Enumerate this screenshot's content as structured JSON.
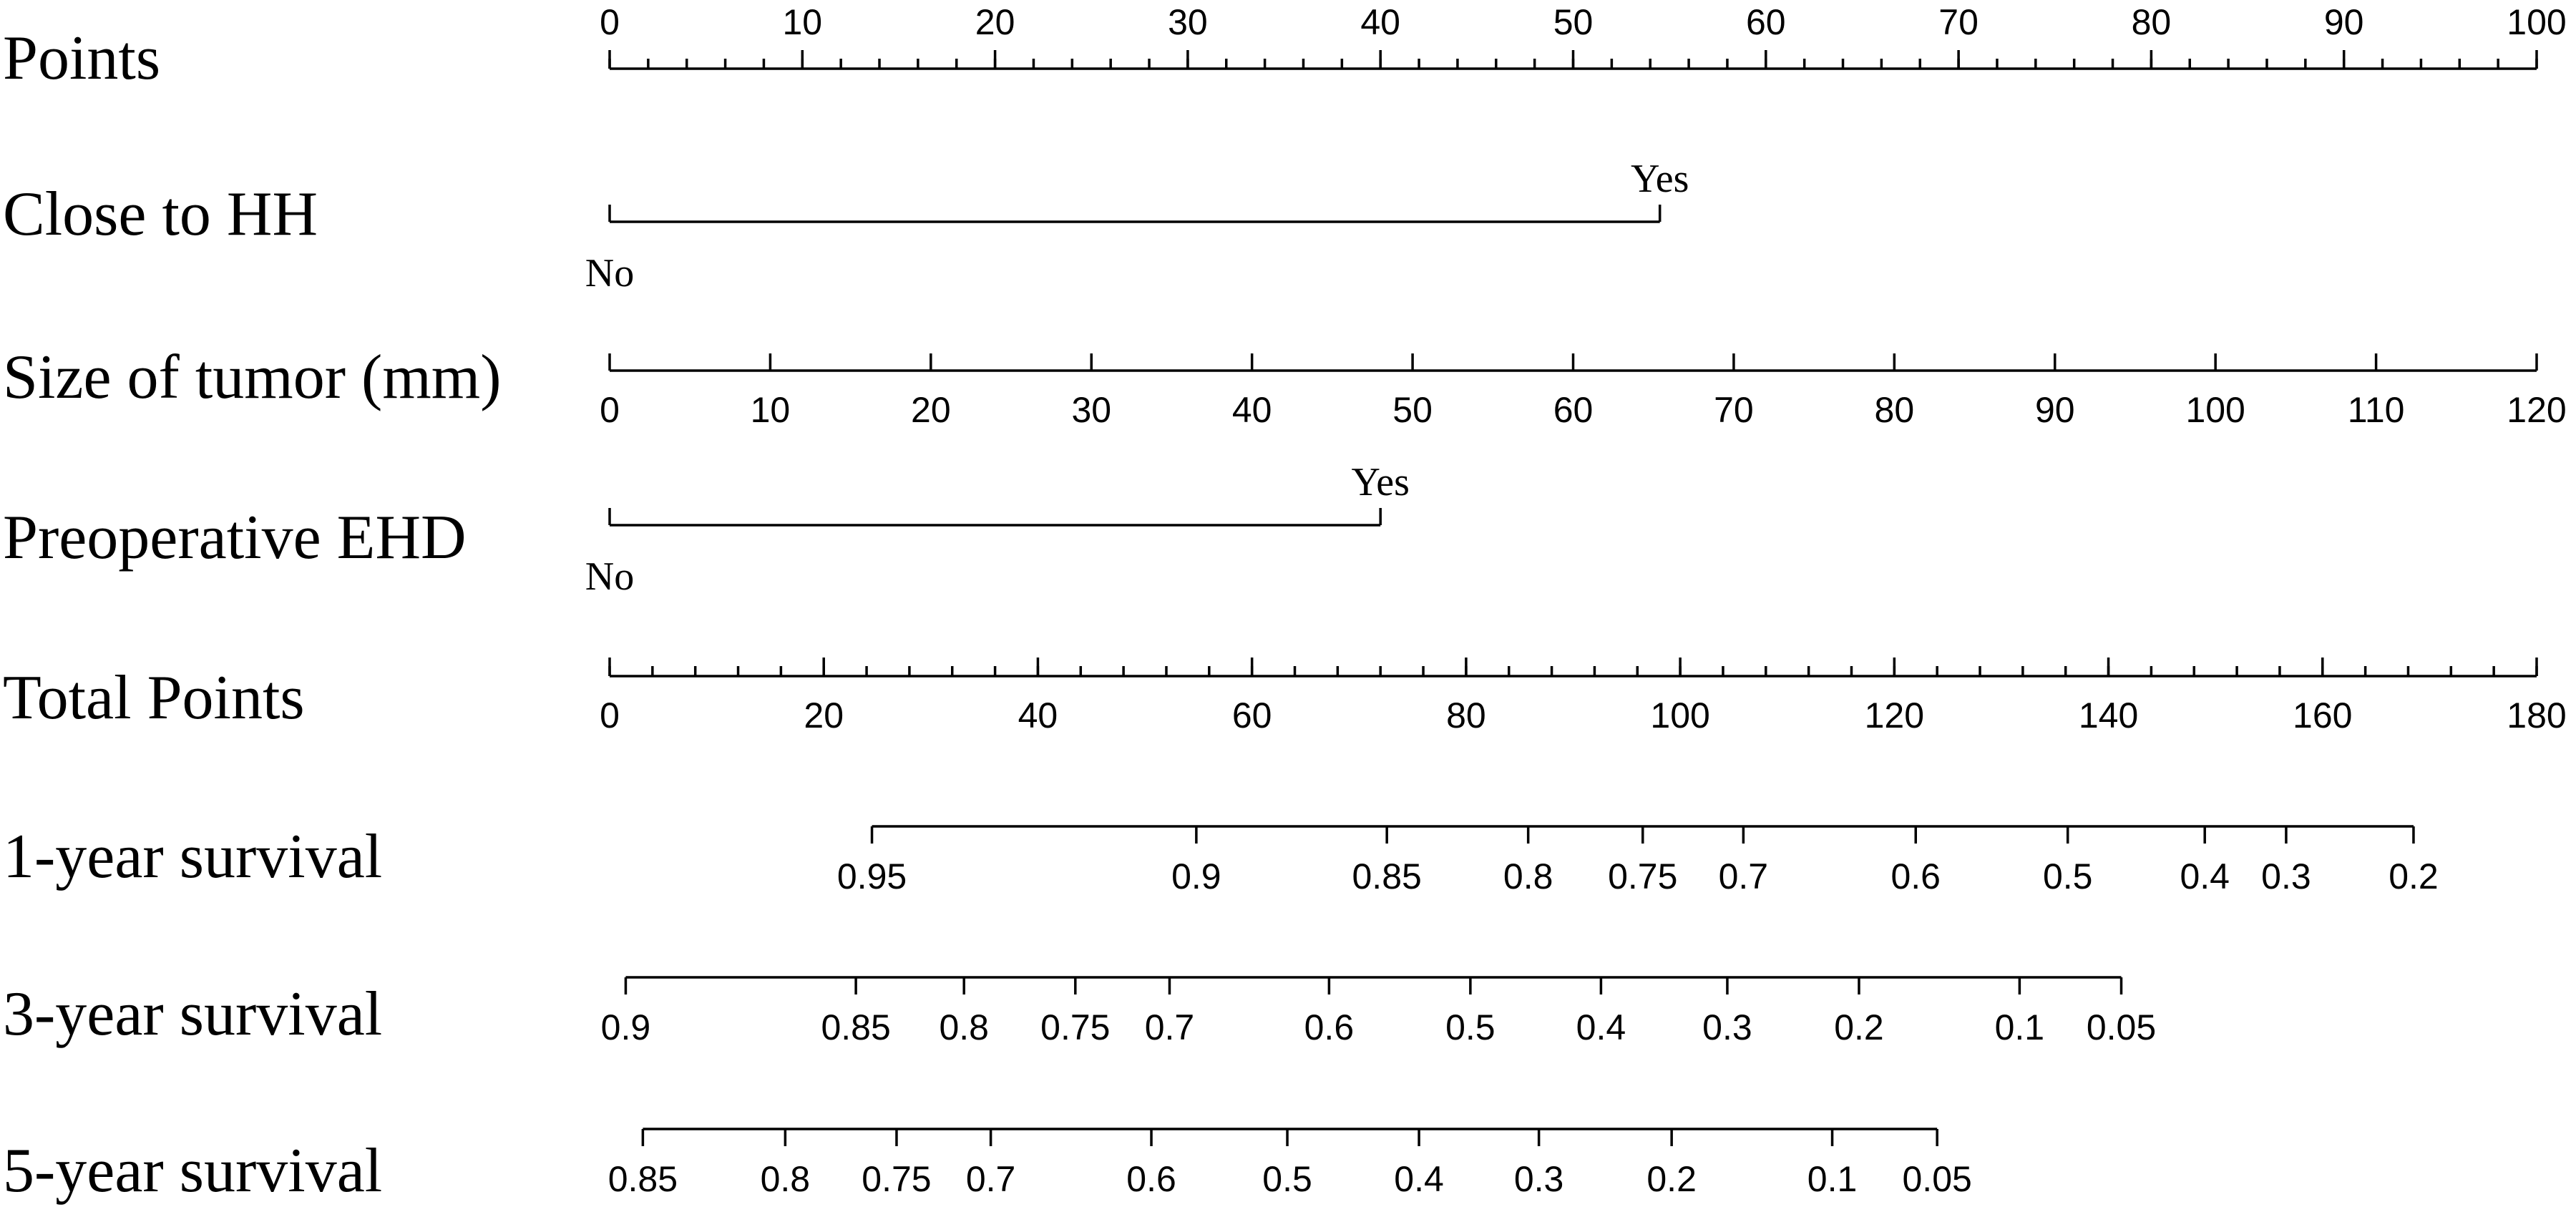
{
  "chart_data": {
    "type": "nomogram",
    "rows": [
      {
        "id": "points",
        "label": "Points",
        "kind": "axis",
        "min": 0,
        "max": 100,
        "labels": [
          0,
          10,
          20,
          30,
          40,
          50,
          60,
          70,
          80,
          90,
          100
        ],
        "minor_step": 2
      },
      {
        "id": "close-to-hh",
        "label": "Close to  HH",
        "kind": "categorical",
        "categories": [
          {
            "name": "No",
            "points": 0
          },
          {
            "name": "Yes",
            "points": 54.5
          }
        ]
      },
      {
        "id": "size-of-tumor",
        "label": "Size of tumor (mm)",
        "kind": "axis",
        "min": 0,
        "max": 120,
        "points_range": [
          0,
          100
        ],
        "labels": [
          0,
          10,
          20,
          30,
          40,
          50,
          60,
          70,
          80,
          90,
          100,
          110,
          120
        ]
      },
      {
        "id": "preoperative-ehd",
        "label": "Preoperative EHD",
        "kind": "categorical",
        "categories": [
          {
            "name": "No",
            "points": 0
          },
          {
            "name": "Yes",
            "points": 40
          }
        ]
      },
      {
        "id": "total-points",
        "label": "Total Points",
        "kind": "axis",
        "min": 0,
        "max": 180,
        "labels": [
          0,
          20,
          40,
          60,
          80,
          100,
          120,
          140,
          160,
          180
        ],
        "minor_step": 4
      },
      {
        "id": "survival-1y",
        "label": "1-year survival",
        "kind": "probability",
        "ticks": [
          {
            "label": "0.95",
            "total_points": 24.5
          },
          {
            "label": "0.9",
            "total_points": 54.8
          },
          {
            "label": "0.85",
            "total_points": 72.6
          },
          {
            "label": "0.8",
            "total_points": 85.8
          },
          {
            "label": "0.75",
            "total_points": 96.5
          },
          {
            "label": "0.7",
            "total_points": 105.9
          },
          {
            "label": "0.6",
            "total_points": 122.0
          },
          {
            "label": "0.5",
            "total_points": 136.2
          },
          {
            "label": "0.4",
            "total_points": 149.0
          },
          {
            "label": "0.3",
            "total_points": 156.6
          },
          {
            "label": "0.2",
            "total_points": 168.5
          }
        ]
      },
      {
        "id": "survival-3y",
        "label": "3-year survival",
        "kind": "probability",
        "ticks": [
          {
            "label": "0.9",
            "total_points": 1.5
          },
          {
            "label": "0.85",
            "total_points": 23.0
          },
          {
            "label": "0.8",
            "total_points": 33.1
          },
          {
            "label": "0.75",
            "total_points": 43.5
          },
          {
            "label": "0.7",
            "total_points": 52.3
          },
          {
            "label": "0.6",
            "total_points": 67.2
          },
          {
            "label": "0.5",
            "total_points": 80.4
          },
          {
            "label": "0.4",
            "total_points": 92.6
          },
          {
            "label": "0.3",
            "total_points": 104.4
          },
          {
            "label": "0.2",
            "total_points": 116.7
          },
          {
            "label": "0.1",
            "total_points": 131.7
          },
          {
            "label": "0.05",
            "total_points": 141.2
          }
        ]
      },
      {
        "id": "survival-5y",
        "label": "5-year survival",
        "kind": "probability",
        "ticks": [
          {
            "label": "0.85",
            "total_points": 3.1
          },
          {
            "label": "0.8",
            "total_points": 16.4
          },
          {
            "label": "0.75",
            "total_points": 26.8
          },
          {
            "label": "0.7",
            "total_points": 35.6
          },
          {
            "label": "0.6",
            "total_points": 50.6
          },
          {
            "label": "0.5",
            "total_points": 63.3
          },
          {
            "label": "0.4",
            "total_points": 75.6
          },
          {
            "label": "0.3",
            "total_points": 86.8
          },
          {
            "label": "0.2",
            "total_points": 99.2
          },
          {
            "label": "0.1",
            "total_points": 114.2
          },
          {
            "label": "0.05",
            "total_points": 124.0
          }
        ]
      }
    ]
  }
}
